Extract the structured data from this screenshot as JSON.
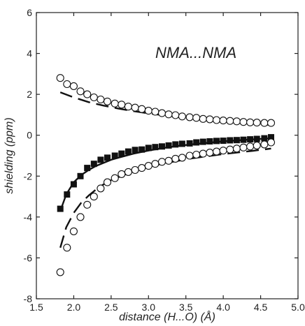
{
  "chart_data": {
    "type": "scatter",
    "title": "",
    "annotation": "NMA...NMA",
    "xlabel": "distance (H...O) (Å)",
    "ylabel": "shielding (ppm)",
    "xlim": [
      1.5,
      5.0
    ],
    "ylim": [
      -8,
      6
    ],
    "xticks": [
      "1.5",
      "2.0",
      "2.5",
      "3.0",
      "3.5",
      "4.0",
      "4.5",
      "5.0"
    ],
    "yticks": [
      "-8",
      "-6",
      "-4",
      "-2",
      "0",
      "2",
      "4",
      "6"
    ],
    "grid": false,
    "series": [
      {
        "marker": "open-circle",
        "x": [
          1.82,
          1.91,
          2.0,
          2.09,
          2.18,
          2.27,
          2.36,
          2.45,
          2.55,
          2.64,
          2.73,
          2.82,
          2.91,
          3.0,
          3.09,
          3.18,
          3.27,
          3.36,
          3.45,
          3.55,
          3.64,
          3.73,
          3.82,
          3.91,
          4.0,
          4.09,
          4.18,
          4.27,
          4.36,
          4.45,
          4.55,
          4.64
        ],
        "values": [
          2.8,
          2.5,
          2.4,
          2.15,
          2.0,
          1.85,
          1.75,
          1.65,
          1.55,
          1.5,
          1.4,
          1.35,
          1.28,
          1.2,
          1.15,
          1.08,
          1.02,
          0.98,
          0.92,
          0.88,
          0.85,
          0.8,
          0.78,
          0.74,
          0.72,
          0.7,
          0.68,
          0.65,
          0.63,
          0.62,
          0.6,
          0.6
        ]
      },
      {
        "marker": "filled-square",
        "x": [
          1.82,
          1.91,
          2.0,
          2.09,
          2.18,
          2.27,
          2.36,
          2.45,
          2.55,
          2.64,
          2.73,
          2.82,
          2.91,
          3.0,
          3.09,
          3.18,
          3.27,
          3.36,
          3.45,
          3.55,
          3.64,
          3.73,
          3.82,
          3.91,
          4.0,
          4.09,
          4.18,
          4.27,
          4.36,
          4.45,
          4.55,
          4.64
        ],
        "values": [
          -3.6,
          -2.9,
          -2.4,
          -2.0,
          -1.6,
          -1.4,
          -1.2,
          -1.1,
          -1.0,
          -0.9,
          -0.8,
          -0.72,
          -0.7,
          -0.62,
          -0.58,
          -0.55,
          -0.5,
          -0.45,
          -0.42,
          -0.4,
          -0.35,
          -0.32,
          -0.3,
          -0.28,
          -0.27,
          -0.25,
          -0.24,
          -0.22,
          -0.2,
          -0.18,
          -0.15,
          -0.1
        ]
      },
      {
        "marker": "open-circle",
        "x": [
          1.82,
          1.91,
          2.0,
          2.09,
          2.18,
          2.27,
          2.36,
          2.45,
          2.55,
          2.64,
          2.73,
          2.82,
          2.91,
          3.0,
          3.09,
          3.18,
          3.27,
          3.36,
          3.45,
          3.55,
          3.64,
          3.73,
          3.82,
          3.91,
          4.0,
          4.09,
          4.18,
          4.27,
          4.36,
          4.45,
          4.55,
          4.64
        ],
        "values": [
          -6.7,
          -5.5,
          -4.7,
          -4.0,
          -3.4,
          -3.0,
          -2.6,
          -2.3,
          -2.1,
          -1.9,
          -1.8,
          -1.7,
          -1.6,
          -1.5,
          -1.4,
          -1.3,
          -1.25,
          -1.15,
          -1.1,
          -1.0,
          -0.95,
          -0.9,
          -0.85,
          -0.8,
          -0.75,
          -0.7,
          -0.65,
          -0.6,
          -0.55,
          -0.5,
          -0.45,
          -0.35
        ]
      }
    ],
    "curves": [
      {
        "style": "dashed",
        "x": [
          1.82,
          2.0,
          2.2,
          2.4,
          2.6,
          2.8,
          3.0,
          3.2,
          3.4,
          3.6,
          3.8,
          4.0,
          4.2,
          4.4,
          4.64
        ],
        "values": [
          2.1,
          1.85,
          1.62,
          1.45,
          1.3,
          1.18,
          1.07,
          0.98,
          0.9,
          0.82,
          0.76,
          0.7,
          0.64,
          0.58,
          0.5
        ]
      },
      {
        "style": "solid",
        "x": [
          1.82,
          1.9,
          2.0,
          2.1,
          2.2,
          2.3,
          2.4,
          2.5,
          2.6,
          2.8,
          3.0,
          3.2,
          3.4,
          3.6,
          3.8,
          4.0,
          4.2,
          4.4,
          4.64
        ],
        "values": [
          -3.7,
          -2.9,
          -2.3,
          -1.95,
          -1.7,
          -1.5,
          -1.35,
          -1.2,
          -1.1,
          -0.9,
          -0.75,
          -0.62,
          -0.52,
          -0.44,
          -0.37,
          -0.3,
          -0.25,
          -0.2,
          -0.15
        ]
      },
      {
        "style": "dashed",
        "x": [
          1.82,
          1.9,
          2.0,
          2.1,
          2.2,
          2.3,
          2.4,
          2.5,
          2.6,
          2.8,
          3.0,
          3.2,
          3.4,
          3.6,
          3.8,
          4.0,
          4.2,
          4.4,
          4.64
        ],
        "values": [
          -5.5,
          -4.5,
          -3.8,
          -3.3,
          -2.95,
          -2.65,
          -2.4,
          -2.2,
          -2.05,
          -1.75,
          -1.55,
          -1.38,
          -1.25,
          -1.12,
          -1.02,
          -0.92,
          -0.84,
          -0.76,
          -0.65
        ]
      }
    ]
  }
}
